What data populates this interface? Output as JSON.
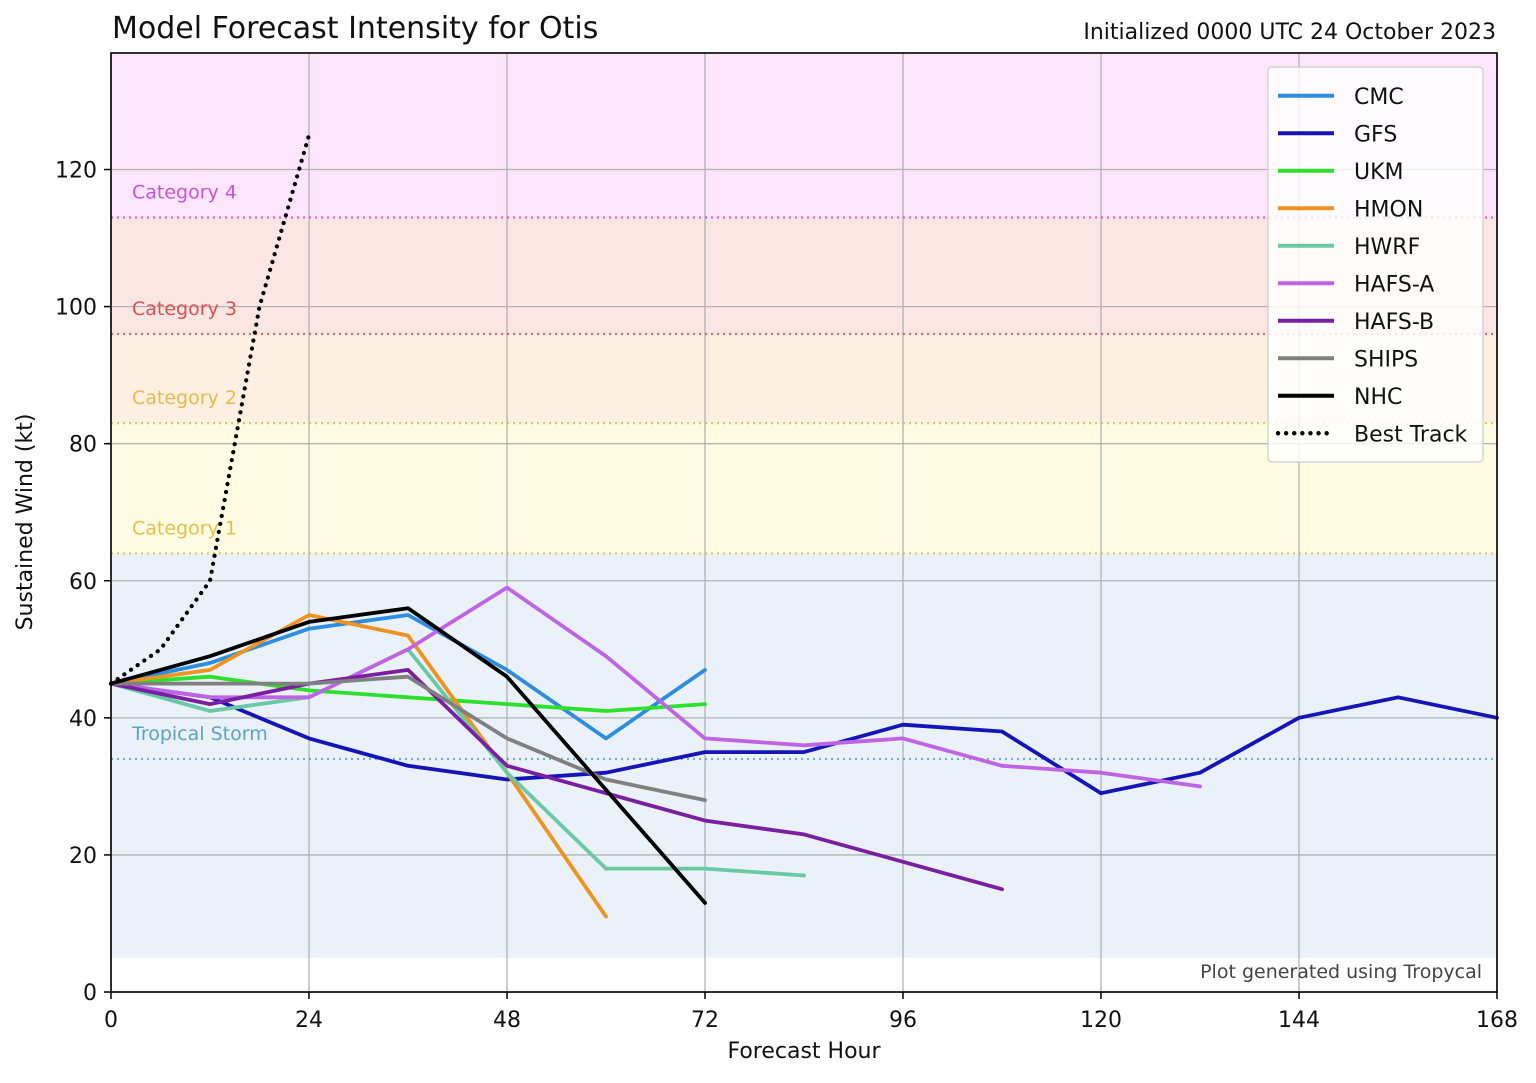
{
  "chart_data": {
    "type": "line",
    "title": "Model Forecast Intensity for Otis",
    "subtitle": "Initialized 0000 UTC 24 October 2023",
    "xlabel": "Forecast Hour",
    "ylabel": "Sustained Wind (kt)",
    "xlim": [
      0,
      168
    ],
    "ylim": [
      0,
      137
    ],
    "xticks": [
      0,
      24,
      48,
      72,
      96,
      120,
      144,
      168
    ],
    "yticks": [
      0,
      20,
      40,
      60,
      80,
      100,
      120
    ],
    "grid": true,
    "legend_position": "top-right",
    "watermark": "Plot generated using Tropycal",
    "categories": [
      {
        "label": "Tropical Storm",
        "threshold": 34,
        "upper": 64,
        "color": "#5aa3c8",
        "fill": "#eaf1f9"
      },
      {
        "label": "Category 1",
        "threshold": 64,
        "upper": 83,
        "color": "#e3c14a",
        "fill": "#fdfbe1"
      },
      {
        "label": "Category 2",
        "threshold": 83,
        "upper": 96,
        "color": "#eab84f",
        "fill": "#fdf0e1"
      },
      {
        "label": "Category 3",
        "threshold": 96,
        "upper": 113,
        "color": "#d9524f",
        "fill": "#fbe6e3"
      },
      {
        "label": "Category 4",
        "threshold": 113,
        "upper": 137,
        "color": "#cc52d8",
        "fill": "#fde5fb"
      }
    ],
    "series": [
      {
        "name": "CMC",
        "color": "#2e8de0",
        "dash": "solid",
        "x": [
          0,
          12,
          24,
          36,
          48,
          60,
          72
        ],
        "y": [
          45,
          48,
          53,
          55,
          47,
          37,
          47
        ]
      },
      {
        "name": "GFS",
        "color": "#1414b8",
        "dash": "solid",
        "x": [
          0,
          12,
          24,
          36,
          48,
          60,
          72,
          84,
          96,
          108,
          120,
          132,
          144,
          156,
          168
        ],
        "y": [
          45,
          43,
          37,
          33,
          31,
          32,
          35,
          35,
          39,
          38,
          29,
          32,
          40,
          43,
          40
        ]
      },
      {
        "name": "UKM",
        "color": "#2ee02e",
        "dash": "solid",
        "x": [
          0,
          12,
          24,
          36,
          48,
          60,
          72
        ],
        "y": [
          45,
          46,
          44,
          43,
          42,
          41,
          42
        ]
      },
      {
        "name": "HMON",
        "color": "#f0921f",
        "dash": "solid",
        "x": [
          0,
          12,
          24,
          36,
          48,
          60
        ],
        "y": [
          45,
          47,
          55,
          52,
          32,
          11
        ]
      },
      {
        "name": "HWRF",
        "color": "#6ac9a5",
        "dash": "solid",
        "x": [
          0,
          12,
          24,
          36,
          48,
          60,
          72,
          84
        ],
        "y": [
          45,
          41,
          43,
          50,
          32,
          18,
          18,
          17
        ]
      },
      {
        "name": "HAFS-A",
        "color": "#c064e6",
        "dash": "solid",
        "x": [
          0,
          12,
          24,
          36,
          48,
          60,
          72,
          84,
          96,
          108,
          120,
          132
        ],
        "y": [
          45,
          43,
          43,
          50,
          59,
          49,
          37,
          36,
          37,
          33,
          32,
          30
        ]
      },
      {
        "name": "HAFS-B",
        "color": "#7b1fa2",
        "dash": "solid",
        "x": [
          0,
          12,
          24,
          36,
          48,
          60,
          72,
          84,
          96,
          108
        ],
        "y": [
          45,
          42,
          45,
          47,
          33,
          29,
          25,
          23,
          19,
          15
        ]
      },
      {
        "name": "SHIPS",
        "color": "#808080",
        "dash": "solid",
        "x": [
          0,
          12,
          24,
          36,
          48,
          60,
          72
        ],
        "y": [
          45,
          45,
          45,
          46,
          37,
          31,
          28
        ]
      },
      {
        "name": "NHC",
        "color": "#000000",
        "dash": "solid",
        "x": [
          0,
          12,
          24,
          36,
          48,
          72
        ],
        "y": [
          45,
          49,
          54,
          56,
          46,
          13
        ]
      },
      {
        "name": "Best Track",
        "color": "#000000",
        "dash": "dotted",
        "x": [
          0,
          6,
          12,
          18,
          24
        ],
        "y": [
          45,
          50,
          60,
          100,
          125
        ]
      }
    ]
  }
}
